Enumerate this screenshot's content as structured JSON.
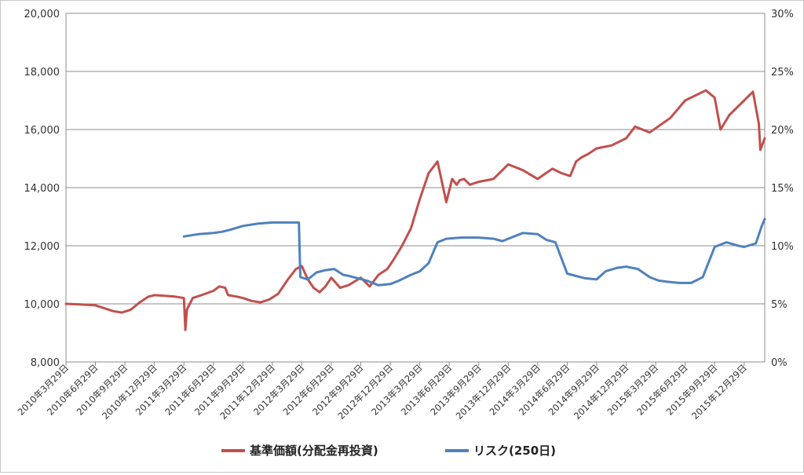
{
  "chart_data": {
    "type": "line",
    "title": "",
    "xlabel": "",
    "ylabel": "",
    "y_left": {
      "ylim": [
        8000,
        20000
      ],
      "ticks": [
        "8,000",
        "10,000",
        "12,000",
        "14,000",
        "16,000",
        "18,000",
        "20,000"
      ]
    },
    "y_right": {
      "ylim": [
        0,
        30
      ],
      "ticks": [
        "0%",
        "5%",
        "10%",
        "15%",
        "20%",
        "25%",
        "30%"
      ]
    },
    "x_range": [
      0,
      23.7
    ],
    "x_ticks": [
      "2010年3月29日",
      "2010年6月29日",
      "2010年9月29日",
      "2010年12月29日",
      "2011年3月29日",
      "2011年6月29日",
      "2011年9月29日",
      "2011年12月29日",
      "2012年3月29日",
      "2012年6月29日",
      "2012年9月29日",
      "2012年12月29日",
      "2013年3月29日",
      "2013年6月29日",
      "2013年9月29日",
      "2013年12月29日",
      "2014年3月29日",
      "2014年6月29日",
      "2014年9月29日",
      "2014年12月29日",
      "2015年3月29日",
      "2015年6月29日",
      "2015年9月29日",
      "2015年12月29日"
    ],
    "grid": true,
    "legend_position": "bottom",
    "series": [
      {
        "name": "基準価額(分配金再投資)",
        "axis": "left",
        "color": "#c0504d",
        "x": [
          0,
          0.5,
          1,
          1.3,
          1.6,
          1.9,
          2.2,
          2.5,
          2.8,
          3.0,
          3.3,
          3.7,
          4.0,
          4.05,
          4.1,
          4.3,
          4.6,
          5.0,
          5.2,
          5.4,
          5.5,
          5.8,
          6.0,
          6.3,
          6.6,
          6.9,
          7.2,
          7.5,
          7.8,
          8.0,
          8.2,
          8.4,
          8.6,
          8.8,
          9.0,
          9.3,
          9.6,
          10.0,
          10.3,
          10.6,
          10.9,
          11.1,
          11.4,
          11.7,
          12.0,
          12.3,
          12.6,
          12.9,
          13.1,
          13.25,
          13.35,
          13.5,
          13.7,
          14.0,
          14.5,
          15.0,
          15.5,
          16.0,
          16.5,
          16.8,
          17.1,
          17.3,
          17.5,
          17.7,
          18.0,
          18.5,
          19.0,
          19.3,
          19.8,
          20.5,
          21.0,
          21.5,
          21.7,
          22.0,
          22.2,
          22.5,
          23.0,
          23.3,
          23.5,
          23.55,
          23.7
        ],
        "y": [
          10000,
          9980,
          9950,
          9850,
          9750,
          9700,
          9800,
          10050,
          10250,
          10300,
          10280,
          10250,
          10200,
          9100,
          9800,
          10200,
          10300,
          10450,
          10600,
          10550,
          10300,
          10250,
          10200,
          10100,
          10050,
          10150,
          10350,
          10800,
          11200,
          11300,
          10850,
          10550,
          10400,
          10600,
          10900,
          10550,
          10650,
          10900,
          10600,
          11000,
          11200,
          11500,
          12000,
          12600,
          13600,
          14500,
          14900,
          13500,
          14300,
          14100,
          14250,
          14300,
          14100,
          14200,
          14300,
          14800,
          14600,
          14300,
          14650,
          14500,
          14400,
          14900,
          15050,
          15150,
          15350,
          15450,
          15700,
          16100,
          15900,
          16400,
          17000,
          17250,
          17350,
          17100,
          16000,
          16500,
          17000,
          17300,
          16200,
          15300,
          15700
        ]
      },
      {
        "name": "リスク(250日)",
        "axis": "right",
        "color": "#4f81bd",
        "x": [
          4.0,
          4.5,
          5.0,
          5.3,
          5.6,
          6.0,
          6.5,
          7.0,
          7.5,
          7.9,
          7.95,
          8.2,
          8.5,
          8.8,
          9.1,
          9.4,
          9.6,
          9.9,
          10.2,
          10.6,
          11.0,
          11.3,
          11.7,
          12.0,
          12.3,
          12.6,
          12.9,
          13.4,
          14.0,
          14.5,
          14.8,
          15.5,
          16.0,
          16.3,
          16.6,
          17.0,
          17.3,
          17.6,
          18.0,
          18.3,
          18.7,
          19.0,
          19.4,
          19.8,
          20.1,
          20.4,
          20.8,
          21.2,
          21.6,
          22.0,
          22.4,
          22.8,
          23.0,
          23.4,
          23.6,
          23.7
        ],
        "y": [
          10.8,
          11.0,
          11.1,
          11.2,
          11.4,
          11.7,
          11.9,
          12.0,
          12.0,
          12.0,
          7.3,
          7.1,
          7.7,
          7.9,
          8.0,
          7.5,
          7.4,
          7.2,
          7.0,
          6.6,
          6.7,
          7.0,
          7.5,
          7.8,
          8.5,
          10.3,
          10.6,
          10.7,
          10.7,
          10.6,
          10.4,
          11.1,
          11.0,
          10.5,
          10.3,
          7.6,
          7.4,
          7.2,
          7.1,
          7.8,
          8.1,
          8.2,
          8.0,
          7.3,
          7.0,
          6.9,
          6.8,
          6.8,
          7.3,
          9.9,
          10.3,
          10.0,
          9.9,
          10.2,
          11.7,
          12.3
        ]
      }
    ]
  }
}
